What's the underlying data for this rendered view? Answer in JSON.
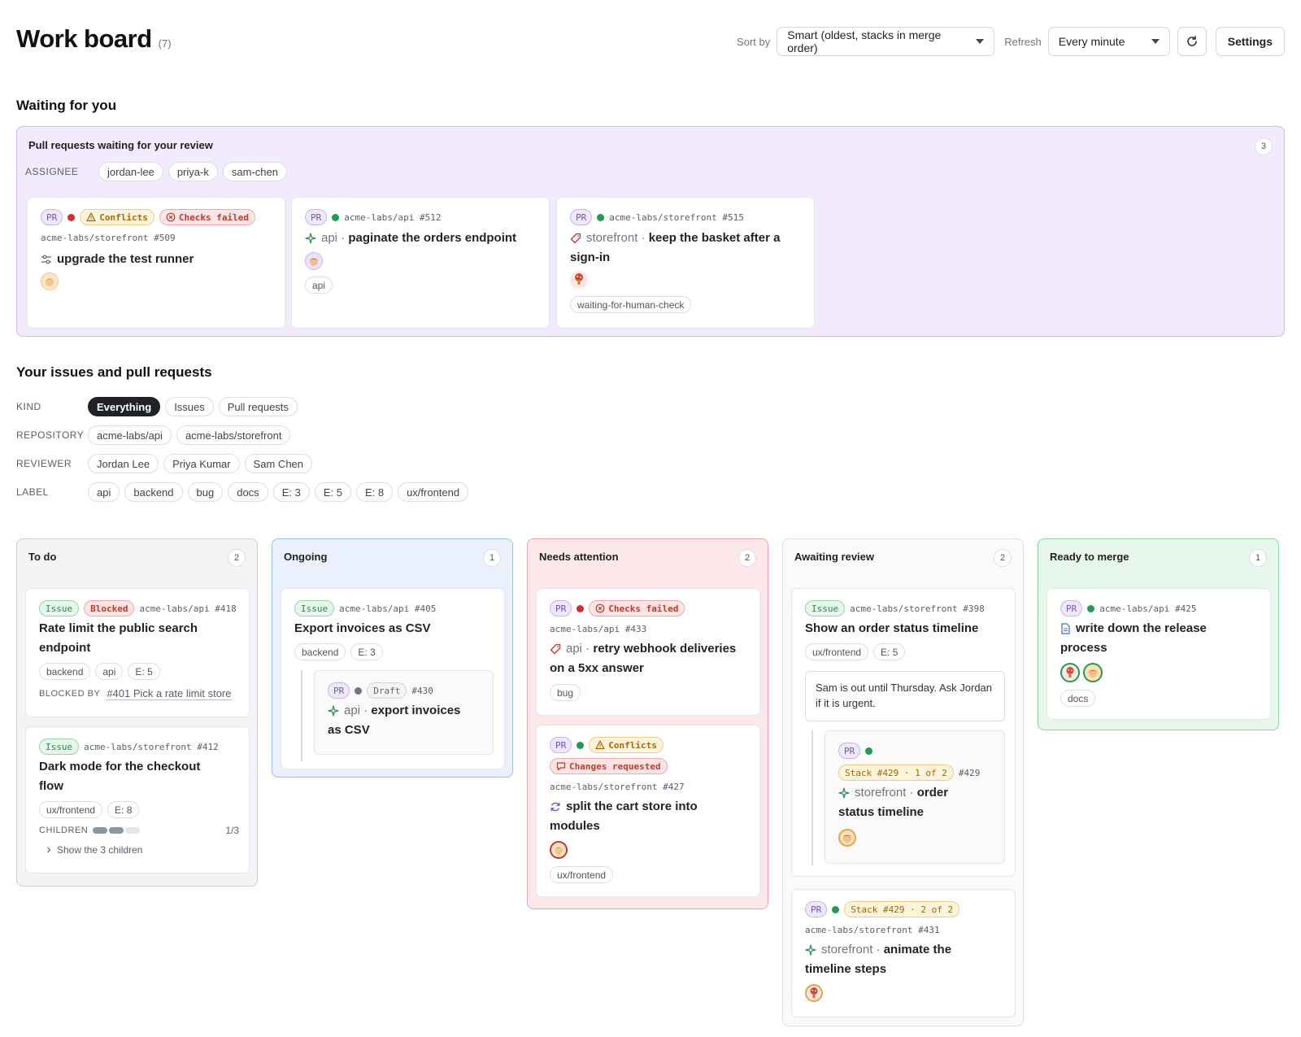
{
  "header": {
    "title": "Work board",
    "count": "(7)",
    "sort_label": "Sort by",
    "sort_value": "Smart (oldest, stacks in merge order)",
    "refresh_label": "Refresh",
    "refresh_value": "Every minute",
    "refresh_icon": "refresh-icon",
    "settings_label": "Settings"
  },
  "waiting": {
    "section_title": "Waiting for you",
    "panel_title": "Pull requests waiting for your review",
    "count": "3",
    "assignee_label": "ASSIGNEE",
    "assignees": [
      "jordan-lee",
      "priya-k",
      "sam-chen"
    ],
    "cards": [
      {
        "type": "PR",
        "status": "red",
        "badges": [
          "Conflicts",
          "Checks failed"
        ],
        "repo": "acme-labs/storefront #509",
        "title": "upgrade the test runner",
        "icon": "settings-sliders-icon"
      },
      {
        "type": "PR",
        "status": "green",
        "repo": "acme-labs/api #512",
        "scope": "api ·",
        "title": "paginate the orders endpoint",
        "labels": [
          "api"
        ],
        "icon": "sparkle-icon"
      },
      {
        "type": "PR",
        "status": "green",
        "repo": "acme-labs/storefront #515",
        "scope": "storefront ·",
        "title": "keep the basket after a",
        "title2": "sign-in",
        "labels": [
          "waiting-for-human-check"
        ],
        "icon": "tag-icon"
      }
    ]
  },
  "yours": {
    "section_title": "Your issues and pull requests",
    "kind_label": "KIND",
    "kinds": [
      "Everything",
      "Issues",
      "Pull requests"
    ],
    "repository_label": "REPOSITORY",
    "repositories": [
      "acme-labs/api",
      "acme-labs/storefront"
    ],
    "reviewer_label": "REVIEWER",
    "reviewers": [
      "Jordan Lee",
      "Priya Kumar",
      "Sam Chen"
    ],
    "label_label": "LABEL",
    "labels": [
      "api",
      "backend",
      "bug",
      "docs",
      "E: 3",
      "E: 5",
      "E: 8",
      "ux/frontend"
    ]
  },
  "columns": {
    "todo": {
      "title": "To do",
      "count": "2",
      "cards": [
        {
          "type": "Issue",
          "badge": "Blocked",
          "repo": "acme-labs/api #418",
          "title": "Rate limit the public search",
          "title2": "endpoint",
          "labels": [
            "backend",
            "api",
            "E: 5"
          ],
          "blocked_by_label": "BLOCKED BY",
          "blocked_by": "#401 Pick a rate limit store"
        },
        {
          "type": "Issue",
          "repo": "acme-labs/storefront #412",
          "title": "Dark mode for the checkout",
          "title2": "flow",
          "labels": [
            "ux/frontend",
            "E: 8"
          ],
          "children_label": "CHILDREN",
          "children_ratio": "1/3",
          "children_done": 0.33,
          "show_children": "Show the 3 children"
        }
      ]
    },
    "ongoing": {
      "title": "Ongoing",
      "count": "1",
      "cards": [
        {
          "type": "Issue",
          "repo": "acme-labs/api #405",
          "title": "Export invoices as CSV",
          "labels": [
            "backend",
            "E: 3"
          ],
          "nested": {
            "type": "PR",
            "badge": "Draft",
            "number": "#430",
            "scope": "api ·",
            "title": "export invoices",
            "title2": "as CSV"
          }
        }
      ]
    },
    "attention": {
      "title": "Needs attention",
      "count": "2",
      "cards": [
        {
          "type": "PR",
          "badge": "Checks failed",
          "repo": "acme-labs/api #433",
          "scope": "api ·",
          "title": "retry webhook deliveries",
          "title2": "on a 5xx answer",
          "labels": [
            "bug"
          ]
        },
        {
          "type": "PR",
          "badge": "Conflicts",
          "badge2": "Changes requested",
          "repo": "acme-labs/storefront #427",
          "title": "split the cart store into",
          "title2": "modules",
          "labels": [
            "ux/frontend"
          ]
        }
      ]
    },
    "review": {
      "title": "Awaiting review",
      "count": "2",
      "cards": [
        {
          "type": "Issue",
          "repo": "acme-labs/storefront #398",
          "title": "Show an order status timeline",
          "labels": [
            "ux/frontend",
            "E: 5"
          ],
          "note": "Sam is out until Thursday. Ask Jordan if it is urgent.",
          "nested": {
            "type": "PR",
            "stack": "Stack #429 · 1 of 2",
            "number": "#429",
            "scope": "storefront ·",
            "title": "order",
            "title2": "status timeline"
          }
        },
        {
          "type": "PR",
          "stack": "Stack #429 · 2 of 2",
          "repo": "acme-labs/storefront #431",
          "scope": "storefront ·",
          "title": "animate the",
          "title2": "timeline steps"
        }
      ]
    },
    "ready": {
      "title": "Ready to merge",
      "count": "1",
      "cards": [
        {
          "type": "PR",
          "repo": "acme-labs/api #425",
          "title": "write down the release",
          "title2": "process",
          "labels": [
            "docs"
          ]
        }
      ]
    }
  },
  "colors": {
    "waiting_bg": "#f1ebfd",
    "todo_bg": "#f3f4f6",
    "ongoing_bg": "#eaf1fc",
    "attention_bg": "#fde8ec",
    "review_bg": "#fafafa",
    "ready_bg": "#e8f7ec"
  }
}
